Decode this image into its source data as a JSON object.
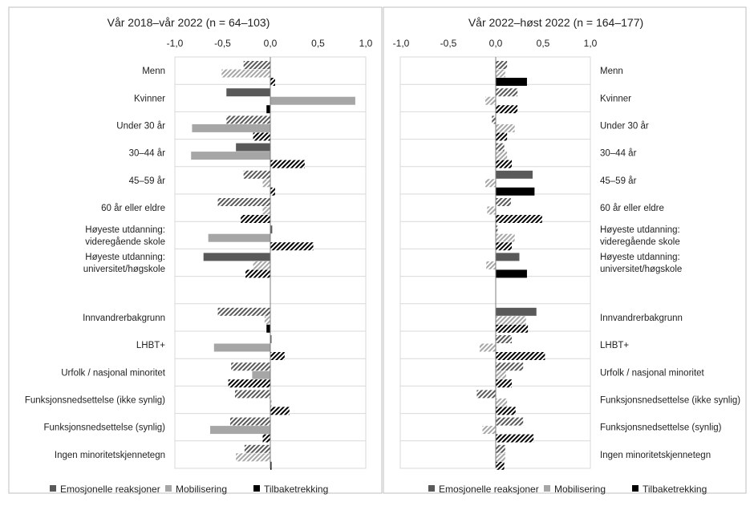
{
  "chart_data": [
    {
      "type": "bar",
      "orientation": "horizontal",
      "title": "Vår 2018–vår 2022 (n = 64–103)",
      "xlim": [
        -1.0,
        1.0
      ],
      "x_ticks": [
        "-1,0",
        "-0,5",
        "0,0",
        "0,5",
        "1,0"
      ],
      "grid": true,
      "legend": "bottom",
      "categories": [
        "Menn",
        "Kvinner",
        "Under 30 år",
        "30–44 år",
        "45–59 år",
        "60 år eller eldre",
        "Høyeste utdanning: videregående skole",
        "Høyeste utdanning: universitet/høgskole",
        "",
        "Innvandrerbakgrunn",
        "LHBT+",
        "Urfolk / nasjonal minoritet",
        "Funksjonsnedsettelse (ikke synlig)",
        "Funksjonsnedsettelse (synlig)",
        "Ingen minoritetskjennetegn"
      ],
      "category_lines": [
        [
          "Menn"
        ],
        [
          "Kvinner"
        ],
        [
          "Under 30 år"
        ],
        [
          "30–44 år"
        ],
        [
          "45–59 år"
        ],
        [
          "60 år eller eldre"
        ],
        [
          "Høyeste utdanning:",
          "videregående skole"
        ],
        [
          "Høyeste utdanning:",
          "universitet/høgskole"
        ],
        [],
        [
          "Innvandrerbakgrunn"
        ],
        [
          "LHBT+"
        ],
        [
          "Urfolk / nasjonal minoritet"
        ],
        [
          "Funksjonsnedsettelse (ikke synlig)"
        ],
        [
          "Funksjonsnedsettelse (synlig)"
        ],
        [
          "Ingen minoritetskjennetegn"
        ]
      ],
      "series": [
        {
          "name": "Emosjonelle reaksjoner",
          "values": [
            -0.28,
            -0.46,
            -0.46,
            -0.36,
            -0.28,
            -0.55,
            0.02,
            -0.7,
            null,
            -0.55,
            0.0,
            -0.41,
            -0.37,
            -0.42,
            -0.27
          ],
          "pattern": [
            1,
            0,
            1,
            0,
            1,
            1,
            0,
            0,
            null,
            1,
            0,
            1,
            1,
            1,
            1
          ]
        },
        {
          "name": "Mobilisering",
          "values": [
            -0.51,
            0.89,
            -0.82,
            -0.83,
            -0.08,
            -0.08,
            -0.65,
            -0.18,
            null,
            -0.06,
            -0.59,
            -0.19,
            0.0,
            -0.63,
            -0.36
          ],
          "pattern": [
            1,
            0,
            0,
            0,
            1,
            1,
            0,
            1,
            null,
            1,
            0,
            0,
            1,
            0,
            1
          ]
        },
        {
          "name": "Tilbaketrekking",
          "values": [
            0.05,
            -0.04,
            -0.18,
            0.36,
            0.05,
            -0.31,
            0.45,
            -0.26,
            null,
            -0.04,
            0.15,
            -0.44,
            0.2,
            -0.08,
            0.0
          ],
          "pattern": [
            1,
            0,
            1,
            1,
            1,
            1,
            1,
            1,
            null,
            0,
            1,
            1,
            1,
            1,
            0
          ]
        }
      ]
    },
    {
      "type": "bar",
      "orientation": "horizontal",
      "title": "Vår 2022–høst 2022 (n = 164–177)",
      "xlim": [
        -1.0,
        1.0
      ],
      "x_ticks": [
        "-1,0",
        "-0,5",
        "0,0",
        "0,5",
        "1,0"
      ],
      "grid": true,
      "legend": "bottom",
      "categories": [
        "Menn",
        "Kvinner",
        "Under 30 år",
        "30–44 år",
        "45–59 år",
        "60 år eller eldre",
        "Høyeste utdanning: videregående skole",
        "Høyeste utdanning: universitet/høgskole",
        "",
        "Innvandrerbakgrunn",
        "LHBT+",
        "Urfolk / nasjonal minoritet",
        "Funksjonsnedsettelse (ikke synlig)",
        "Funksjonsnedsettelse (synlig)",
        "Ingen minoritetskjennetegn"
      ],
      "category_lines": [
        [
          "Menn"
        ],
        [
          "Kvinner"
        ],
        [
          "Under 30 år"
        ],
        [
          "30–44 år"
        ],
        [
          "45–59 år"
        ],
        [
          "60 år eller eldre"
        ],
        [
          "Høyeste utdanning:",
          "videregående skole"
        ],
        [
          "Høyeste utdanning:",
          "universitet/høgskole"
        ],
        [],
        [
          "Innvandrerbakgrunn"
        ],
        [
          "LHBT+"
        ],
        [
          "Urfolk / nasjonal minoritet"
        ],
        [
          "Funksjonsnedsettelse (ikke synlig)"
        ],
        [
          "Funksjonsnedsettelse (synlig)"
        ],
        [
          "Ingen minoritetskjennetegn"
        ]
      ],
      "series": [
        {
          "name": "Emosjonelle reaksjoner",
          "values": [
            0.12,
            0.23,
            -0.04,
            0.09,
            0.39,
            0.16,
            0.02,
            0.25,
            null,
            0.43,
            0.17,
            0.29,
            -0.2,
            0.29,
            0.1
          ],
          "pattern": [
            1,
            1,
            1,
            1,
            0,
            1,
            1,
            0,
            null,
            0,
            1,
            1,
            1,
            1,
            1
          ]
        },
        {
          "name": "Mobilisering",
          "values": [
            0.1,
            -0.11,
            0.2,
            0.12,
            -0.11,
            -0.09,
            0.2,
            -0.1,
            null,
            0.32,
            -0.17,
            0.11,
            0.12,
            -0.14,
            0.1
          ],
          "pattern": [
            1,
            1,
            1,
            1,
            1,
            1,
            1,
            1,
            null,
            1,
            1,
            1,
            1,
            1,
            1
          ]
        },
        {
          "name": "Tilbaketrekking",
          "values": [
            0.33,
            0.23,
            0.12,
            0.17,
            0.41,
            0.49,
            0.17,
            0.33,
            null,
            0.34,
            0.52,
            0.17,
            0.21,
            0.4,
            0.09
          ],
          "pattern": [
            0,
            1,
            1,
            1,
            0,
            1,
            1,
            0,
            null,
            1,
            1,
            1,
            1,
            1,
            1
          ]
        }
      ]
    }
  ],
  "colors": {
    "emosjonelle": "#595959",
    "mobilisering": "#a6a6a6",
    "tilbaketrekking": "#000000",
    "grid": "#d9d9d9",
    "frame": "#bfbfbf"
  },
  "legend_items": [
    "Emosjonelle reaksjoner",
    "Mobilisering",
    "Tilbaketrekking"
  ]
}
